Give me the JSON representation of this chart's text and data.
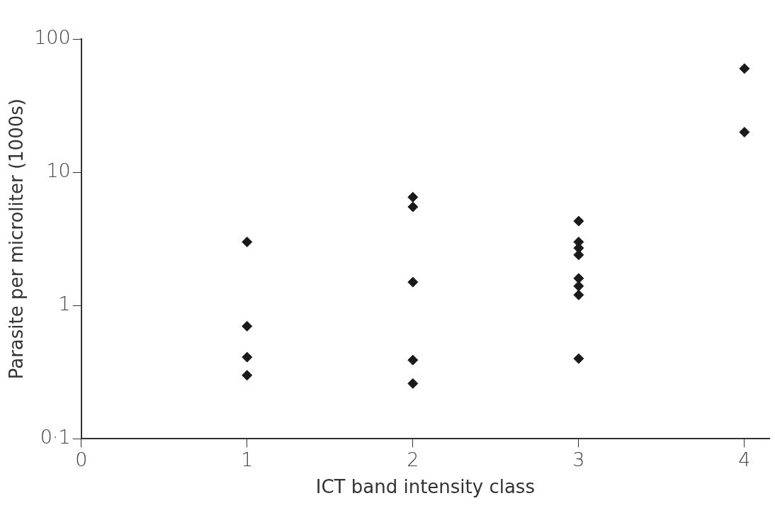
{
  "chart_data": {
    "type": "scatter",
    "xlabel": "ICT band intensity class",
    "ylabel": "Parasite per microliter (1000s)",
    "series": [
      {
        "color": "#1a1a1a",
        "x": [
          1,
          1,
          1,
          1,
          2,
          2,
          2,
          2,
          2,
          3,
          3,
          3,
          3,
          3,
          3,
          3,
          3,
          4,
          4
        ],
        "values": [
          3.0,
          0.7,
          0.41,
          0.3,
          6.5,
          5.5,
          1.5,
          0.39,
          0.26,
          4.3,
          3.0,
          2.7,
          2.4,
          1.6,
          1.4,
          1.2,
          0.4,
          60,
          20
        ]
      }
    ],
    "xlim": [
      0,
      4.15
    ],
    "xticks": [
      0,
      1,
      2,
      3,
      4
    ],
    "ylim": [
      0.1,
      100
    ],
    "yticks": [
      {
        "value": 0.1,
        "label": "0·1"
      },
      1,
      10,
      100
    ],
    "log": "y",
    "grid": false,
    "legend": false,
    "marker": "diamond"
  }
}
